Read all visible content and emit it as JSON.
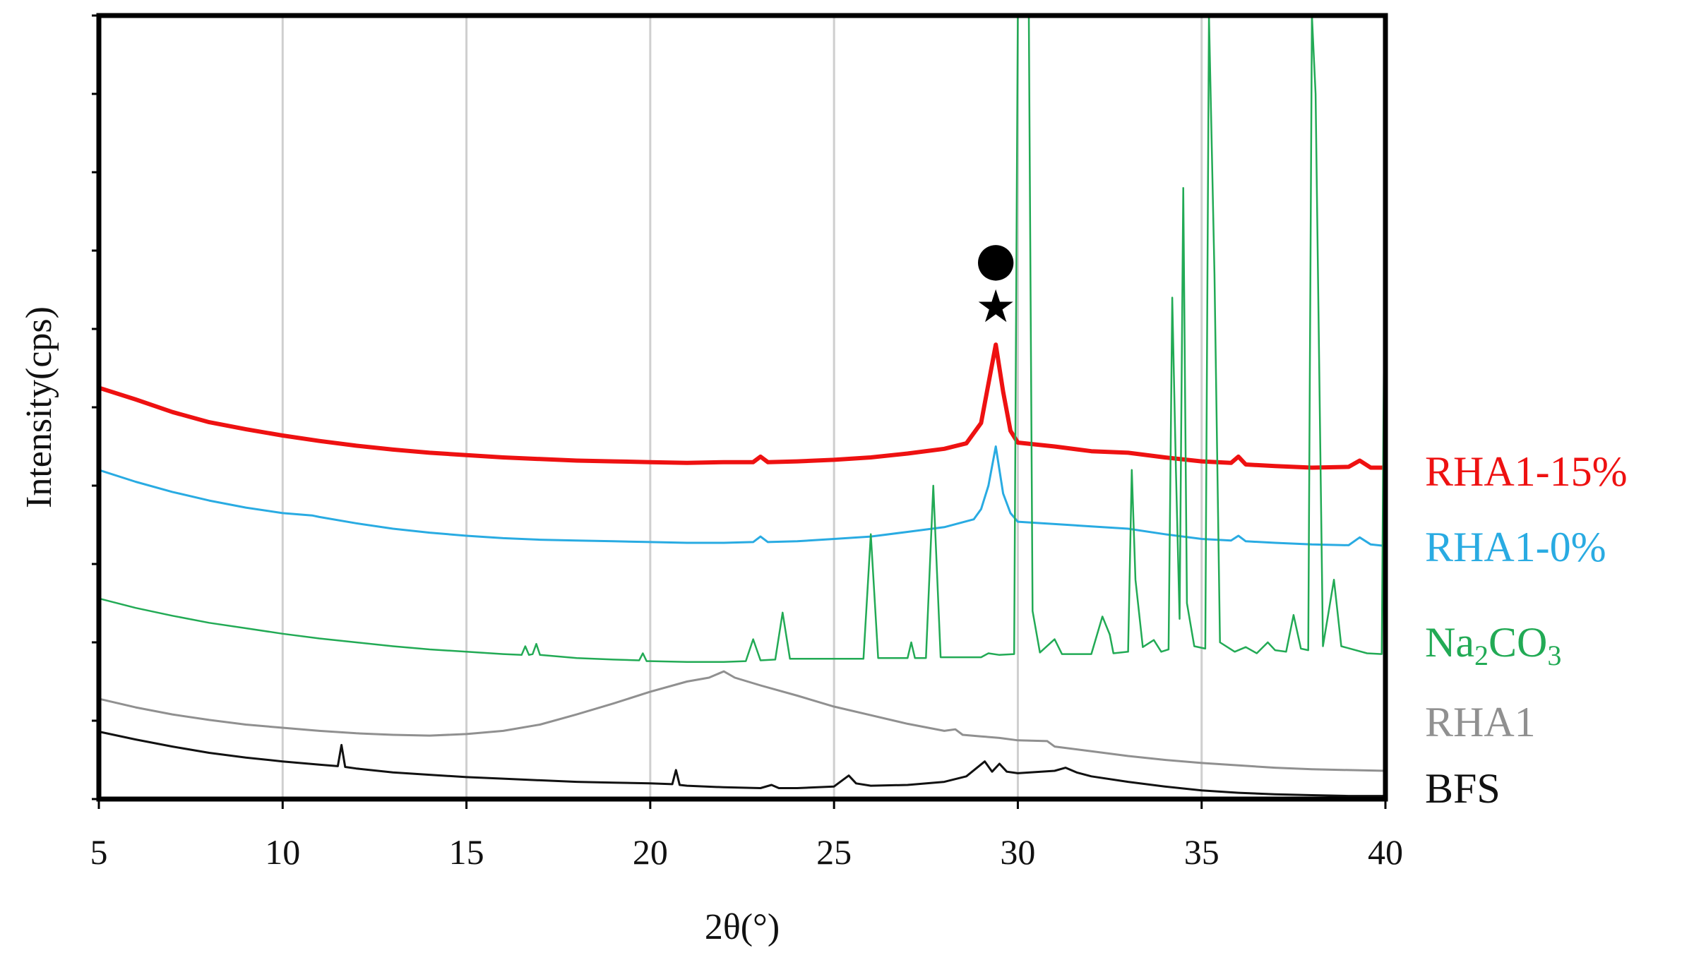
{
  "chart_data": {
    "type": "line",
    "title": "",
    "xlabel": "2θ(°)",
    "ylabel": "Intensity(cps)",
    "xlim": [
      5,
      40
    ],
    "x_ticks": [
      5,
      10,
      15,
      20,
      25,
      30,
      35,
      40
    ],
    "x_tick_labels": [
      "5",
      "10",
      "15",
      "20",
      "25",
      "30",
      "35",
      "40"
    ],
    "ylim": [
      0,
      100
    ],
    "y_ticks_labeled": false,
    "grid": "vertical",
    "legend": "right-of-plot, labels aligned with curves",
    "annotations": [
      {
        "symbol": "●",
        "name": "circle-marker",
        "x": 29.4,
        "y": 68.5
      },
      {
        "symbol": "★",
        "name": "star-marker",
        "x": 29.4,
        "y": 62.5
      }
    ],
    "series": [
      {
        "name": "RHA1-15%",
        "label_text": "RHA1-15%",
        "color": "#ee1111",
        "stroke_width": 6,
        "points": [
          [
            5,
            52.5
          ],
          [
            6,
            51
          ],
          [
            7,
            49.4
          ],
          [
            8,
            48.1
          ],
          [
            9,
            47.2
          ],
          [
            10,
            46.4
          ],
          [
            11,
            45.7
          ],
          [
            12,
            45.1
          ],
          [
            13,
            44.6
          ],
          [
            14,
            44.2
          ],
          [
            15,
            43.9
          ],
          [
            16,
            43.6
          ],
          [
            17,
            43.4
          ],
          [
            18,
            43.2
          ],
          [
            19,
            43.1
          ],
          [
            20,
            43
          ],
          [
            21,
            42.9
          ],
          [
            22,
            43
          ],
          [
            22.8,
            43
          ],
          [
            23,
            43.7
          ],
          [
            23.2,
            43
          ],
          [
            24,
            43.1
          ],
          [
            25,
            43.3
          ],
          [
            26,
            43.6
          ],
          [
            27,
            44.1
          ],
          [
            28,
            44.7
          ],
          [
            28.6,
            45.4
          ],
          [
            29,
            48
          ],
          [
            29.2,
            53
          ],
          [
            29.4,
            58
          ],
          [
            29.6,
            52
          ],
          [
            29.8,
            47
          ],
          [
            30,
            45.5
          ],
          [
            31,
            45
          ],
          [
            32,
            44.4
          ],
          [
            33,
            44.2
          ],
          [
            34,
            43.6
          ],
          [
            35,
            43.1
          ],
          [
            35.8,
            42.9
          ],
          [
            36,
            43.7
          ],
          [
            36.2,
            42.7
          ],
          [
            37,
            42.5
          ],
          [
            38,
            42.3
          ],
          [
            39,
            42.4
          ],
          [
            39.3,
            43.2
          ],
          [
            39.6,
            42.3
          ],
          [
            40,
            42.3
          ]
        ]
      },
      {
        "name": "RHA1-0%",
        "label_text": "RHA1-0%",
        "color": "#29abe2",
        "stroke_width": 3,
        "points": [
          [
            5,
            42
          ],
          [
            6,
            40.5
          ],
          [
            7,
            39.2
          ],
          [
            8,
            38.1
          ],
          [
            9,
            37.2
          ],
          [
            10,
            36.5
          ],
          [
            10.8,
            36.2
          ],
          [
            11,
            36
          ],
          [
            12,
            35.2
          ],
          [
            13,
            34.5
          ],
          [
            14,
            34
          ],
          [
            15,
            33.6
          ],
          [
            16,
            33.3
          ],
          [
            17,
            33.1
          ],
          [
            18,
            33
          ],
          [
            19,
            32.9
          ],
          [
            20,
            32.8
          ],
          [
            21,
            32.7
          ],
          [
            22,
            32.7
          ],
          [
            22.8,
            32.8
          ],
          [
            23,
            33.5
          ],
          [
            23.2,
            32.8
          ],
          [
            24,
            32.9
          ],
          [
            25,
            33.2
          ],
          [
            26,
            33.5
          ],
          [
            27,
            34.1
          ],
          [
            28,
            34.7
          ],
          [
            28.8,
            35.7
          ],
          [
            29,
            37
          ],
          [
            29.2,
            40
          ],
          [
            29.4,
            45
          ],
          [
            29.6,
            39
          ],
          [
            29.8,
            36.5
          ],
          [
            30,
            35.4
          ],
          [
            31,
            35.1
          ],
          [
            32,
            34.8
          ],
          [
            33,
            34.5
          ],
          [
            34,
            33.8
          ],
          [
            35,
            33.2
          ],
          [
            35.8,
            33
          ],
          [
            36,
            33.6
          ],
          [
            36.2,
            32.9
          ],
          [
            37,
            32.7
          ],
          [
            38,
            32.5
          ],
          [
            39,
            32.4
          ],
          [
            39.3,
            33.4
          ],
          [
            39.6,
            32.5
          ],
          [
            40,
            32.3
          ]
        ]
      },
      {
        "name": "Na2CO3",
        "label_text_main": "Na",
        "label_sub_1": "2",
        "label_text_mid": "CO",
        "label_sub_2": "3",
        "color": "#22aa55",
        "stroke_width": 2.5,
        "points": [
          [
            5,
            25.6
          ],
          [
            6,
            24.4
          ],
          [
            7,
            23.4
          ],
          [
            8,
            22.5
          ],
          [
            9,
            21.8
          ],
          [
            10,
            21.1
          ],
          [
            11,
            20.5
          ],
          [
            12,
            20
          ],
          [
            13,
            19.5
          ],
          [
            14,
            19.1
          ],
          [
            15,
            18.8
          ],
          [
            16,
            18.5
          ],
          [
            16.5,
            18.4
          ],
          [
            16.6,
            19.5
          ],
          [
            16.7,
            18.4
          ],
          [
            16.8,
            18.5
          ],
          [
            16.9,
            19.8
          ],
          [
            17,
            18.4
          ],
          [
            18,
            18
          ],
          [
            19,
            17.8
          ],
          [
            19.7,
            17.7
          ],
          [
            19.8,
            18.6
          ],
          [
            19.9,
            17.6
          ],
          [
            20,
            17.6
          ],
          [
            21,
            17.5
          ],
          [
            21.5,
            17.5
          ],
          [
            22,
            17.5
          ],
          [
            22.6,
            17.6
          ],
          [
            22.8,
            20.4
          ],
          [
            23,
            17.7
          ],
          [
            23.4,
            17.8
          ],
          [
            23.6,
            23.8
          ],
          [
            23.8,
            17.9
          ],
          [
            25,
            17.9
          ],
          [
            25.8,
            17.9
          ],
          [
            26,
            33.8
          ],
          [
            26.2,
            18
          ],
          [
            27,
            18
          ],
          [
            27.1,
            20
          ],
          [
            27.2,
            18
          ],
          [
            27.5,
            18
          ],
          [
            27.7,
            40
          ],
          [
            27.9,
            18.1
          ],
          [
            29,
            18.1
          ],
          [
            29.2,
            18.6
          ],
          [
            29.5,
            18.4
          ],
          [
            29.9,
            18.5
          ],
          [
            30,
            100
          ],
          [
            30.3,
            100
          ],
          [
            30.4,
            24
          ],
          [
            30.6,
            18.7
          ],
          [
            31,
            20.4
          ],
          [
            31.2,
            18.5
          ],
          [
            32,
            18.5
          ],
          [
            32.3,
            23.3
          ],
          [
            32.5,
            21
          ],
          [
            32.6,
            18.6
          ],
          [
            33,
            18.8
          ],
          [
            33.1,
            42
          ],
          [
            33.2,
            28
          ],
          [
            33.4,
            19.4
          ],
          [
            33.7,
            20.3
          ],
          [
            33.9,
            18.8
          ],
          [
            34.1,
            19.1
          ],
          [
            34.2,
            64
          ],
          [
            34.3,
            42
          ],
          [
            34.4,
            23
          ],
          [
            34.5,
            78
          ],
          [
            34.6,
            25
          ],
          [
            34.8,
            19.5
          ],
          [
            35.1,
            19.2
          ],
          [
            35.2,
            100
          ],
          [
            35.35,
            67
          ],
          [
            35.5,
            20
          ],
          [
            35.9,
            18.8
          ],
          [
            36.2,
            19.4
          ],
          [
            36.5,
            18.6
          ],
          [
            36.8,
            20
          ],
          [
            37,
            19
          ],
          [
            37.3,
            18.8
          ],
          [
            37.5,
            23.5
          ],
          [
            37.7,
            19.2
          ],
          [
            37.9,
            19
          ],
          [
            38,
            100
          ],
          [
            38.1,
            90
          ],
          [
            38.3,
            19.5
          ],
          [
            38.6,
            28
          ],
          [
            38.8,
            19.5
          ],
          [
            39.5,
            18.6
          ],
          [
            39.9,
            18.5
          ],
          [
            40,
            82
          ],
          [
            40,
            18.5
          ]
        ]
      },
      {
        "name": "RHA1",
        "label_text": "RHA1",
        "color": "#909090",
        "stroke_width": 3,
        "points": [
          [
            5,
            12.8
          ],
          [
            6,
            11.7
          ],
          [
            7,
            10.8
          ],
          [
            8,
            10.1
          ],
          [
            9,
            9.5
          ],
          [
            10,
            9.1
          ],
          [
            11,
            8.7
          ],
          [
            12,
            8.4
          ],
          [
            13,
            8.2
          ],
          [
            14,
            8.1
          ],
          [
            15,
            8.3
          ],
          [
            16,
            8.7
          ],
          [
            17,
            9.5
          ],
          [
            18,
            10.8
          ],
          [
            19,
            12.2
          ],
          [
            20,
            13.7
          ],
          [
            21,
            15
          ],
          [
            21.6,
            15.5
          ],
          [
            22,
            16.3
          ],
          [
            22.3,
            15.5
          ],
          [
            23,
            14.5
          ],
          [
            24,
            13.2
          ],
          [
            25,
            11.8
          ],
          [
            26,
            10.7
          ],
          [
            27,
            9.6
          ],
          [
            28,
            8.7
          ],
          [
            28.3,
            8.9
          ],
          [
            28.5,
            8.2
          ],
          [
            29,
            8
          ],
          [
            29.5,
            7.8
          ],
          [
            30,
            7.5
          ],
          [
            30.8,
            7.4
          ],
          [
            31,
            6.7
          ],
          [
            32,
            6.1
          ],
          [
            33,
            5.5
          ],
          [
            34,
            5
          ],
          [
            35,
            4.6
          ],
          [
            36,
            4.3
          ],
          [
            37,
            4
          ],
          [
            38,
            3.8
          ],
          [
            39,
            3.7
          ],
          [
            40,
            3.6
          ]
        ]
      },
      {
        "name": "BFS",
        "label_text": "BFS",
        "color": "#111111",
        "stroke_width": 3,
        "points": [
          [
            5,
            8.6
          ],
          [
            6,
            7.6
          ],
          [
            7,
            6.7
          ],
          [
            8,
            5.9
          ],
          [
            9,
            5.3
          ],
          [
            10,
            4.8
          ],
          [
            11,
            4.4
          ],
          [
            11.5,
            4.2
          ],
          [
            11.6,
            6.9
          ],
          [
            11.7,
            4.1
          ],
          [
            12,
            3.9
          ],
          [
            13,
            3.4
          ],
          [
            14,
            3.1
          ],
          [
            15,
            2.8
          ],
          [
            16,
            2.6
          ],
          [
            17,
            2.4
          ],
          [
            18,
            2.2
          ],
          [
            19,
            2.1
          ],
          [
            20,
            2
          ],
          [
            20.6,
            1.9
          ],
          [
            20.7,
            3.7
          ],
          [
            20.8,
            1.8
          ],
          [
            21,
            1.7
          ],
          [
            22,
            1.5
          ],
          [
            23,
            1.4
          ],
          [
            23.3,
            1.8
          ],
          [
            23.5,
            1.4
          ],
          [
            24,
            1.4
          ],
          [
            25,
            1.6
          ],
          [
            25.4,
            3
          ],
          [
            25.6,
            2
          ],
          [
            26,
            1.7
          ],
          [
            27,
            1.8
          ],
          [
            28,
            2.2
          ],
          [
            28.6,
            2.9
          ],
          [
            29.1,
            4.8
          ],
          [
            29.3,
            3.5
          ],
          [
            29.5,
            4.5
          ],
          [
            29.7,
            3.5
          ],
          [
            30,
            3.3
          ],
          [
            31,
            3.6
          ],
          [
            31.3,
            4
          ],
          [
            31.6,
            3.4
          ],
          [
            32,
            2.9
          ],
          [
            33,
            2.2
          ],
          [
            34,
            1.6
          ],
          [
            35,
            1.1
          ],
          [
            36,
            0.8
          ],
          [
            37,
            0.6
          ],
          [
            38,
            0.5
          ],
          [
            39,
            0.4
          ],
          [
            40,
            0.4
          ]
        ]
      }
    ]
  }
}
